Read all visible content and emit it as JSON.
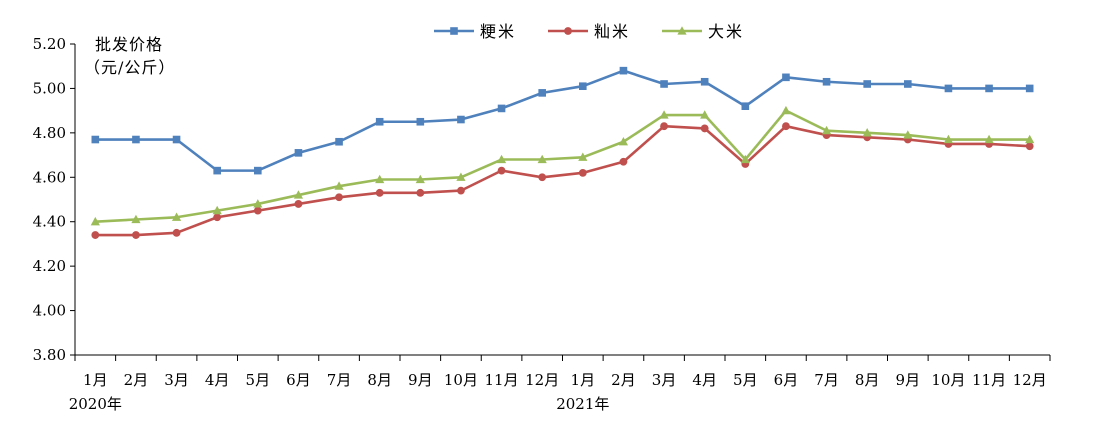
{
  "chart_data": {
    "type": "line",
    "ylabel_line1": "批发价格",
    "ylabel_line2": "（元/公斤）",
    "ylim": [
      3.8,
      5.2
    ],
    "yticks": [
      "3.80",
      "4.00",
      "4.20",
      "4.40",
      "4.60",
      "4.80",
      "5.00",
      "5.20"
    ],
    "categories": [
      "1月",
      "2月",
      "3月",
      "4月",
      "5月",
      "6月",
      "7月",
      "8月",
      "9月",
      "10月",
      "11月",
      "12月",
      "1月",
      "2月",
      "3月",
      "4月",
      "5月",
      "6月",
      "7月",
      "8月",
      "9月",
      "10月",
      "11月",
      "12月"
    ],
    "year_labels": [
      {
        "label": "2020年",
        "index": 0
      },
      {
        "label": "2021年",
        "index": 12
      }
    ],
    "grid": false,
    "legend_position": "top-center",
    "series": [
      {
        "name": "粳米",
        "color": "#4f81bd",
        "marker": "square",
        "values": [
          4.77,
          4.77,
          4.77,
          4.63,
          4.63,
          4.71,
          4.76,
          4.85,
          4.85,
          4.86,
          4.91,
          4.98,
          5.01,
          5.08,
          5.02,
          5.03,
          4.92,
          5.05,
          5.03,
          5.02,
          5.02,
          5.0,
          5.0,
          5.0
        ]
      },
      {
        "name": "籼米",
        "color": "#c0504d",
        "marker": "circle",
        "values": [
          4.34,
          4.34,
          4.35,
          4.42,
          4.45,
          4.48,
          4.51,
          4.53,
          4.53,
          4.54,
          4.63,
          4.6,
          4.62,
          4.67,
          4.83,
          4.82,
          4.66,
          4.83,
          4.79,
          4.78,
          4.77,
          4.75,
          4.75,
          4.74
        ]
      },
      {
        "name": "大米",
        "color": "#9bbb59",
        "marker": "triangle",
        "values": [
          4.4,
          4.41,
          4.42,
          4.45,
          4.48,
          4.52,
          4.56,
          4.59,
          4.59,
          4.6,
          4.68,
          4.68,
          4.69,
          4.76,
          4.88,
          4.88,
          4.68,
          4.9,
          4.81,
          4.8,
          4.79,
          4.77,
          4.77,
          4.77
        ]
      }
    ]
  }
}
